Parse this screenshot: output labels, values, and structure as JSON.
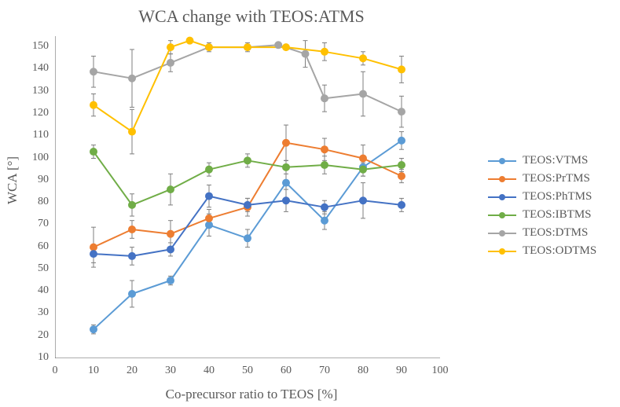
{
  "chart": {
    "type": "line-scatter",
    "title": "WCA change with TEOS:ATMS",
    "title_fontsize": 22,
    "title_color": "#595959",
    "xlabel": "Co-precursor ratio to TEOS [%]",
    "ylabel": "WCA [°]",
    "axis_label_fontsize": 17,
    "axis_color": "#595959",
    "tick_fontsize": 14,
    "tick_color": "#595959",
    "background_color": "#ffffff",
    "grid": false,
    "xlim": [
      0,
      100
    ],
    "ylim": [
      10,
      155
    ],
    "xticks": [
      0,
      10,
      20,
      30,
      40,
      50,
      60,
      70,
      80,
      90,
      100
    ],
    "yticks": [
      10,
      20,
      30,
      40,
      50,
      60,
      70,
      80,
      90,
      100,
      110,
      120,
      130,
      140,
      150
    ],
    "x_values": [
      10,
      20,
      30,
      40,
      50,
      60,
      70,
      80,
      90
    ],
    "marker_radius": 4.5,
    "line_width": 2,
    "errorbar_color": "#7f7f7f",
    "errorbar_width": 1,
    "errorbar_cap": 6,
    "series": [
      {
        "name": "TEOS:VTMS",
        "color": "#5b9bd5",
        "y": [
          23,
          39,
          45,
          70,
          64,
          89,
          72,
          96,
          108
        ],
        "err": [
          2,
          6,
          2,
          5,
          4,
          8,
          4,
          4,
          4
        ]
      },
      {
        "name": "TEOS:PrTMS",
        "color": "#ed7d31",
        "y": [
          60,
          68,
          66,
          73,
          78,
          107,
          104,
          100,
          92
        ],
        "err": [
          9,
          4,
          6,
          4,
          4,
          8,
          5,
          6,
          3
        ]
      },
      {
        "name": "TEOS:PhTMS",
        "color": "#4472c4",
        "y": [
          57,
          56,
          59,
          83,
          79,
          81,
          78,
          81,
          79
        ],
        "err": [
          4,
          4,
          3,
          5,
          3,
          5,
          3,
          8,
          3
        ]
      },
      {
        "name": "TEOS:IBTMS",
        "color": "#70ad47",
        "y": [
          103,
          79,
          86,
          95,
          99,
          96,
          97,
          95,
          97
        ],
        "err": [
          3,
          5,
          7,
          3,
          3,
          3,
          4,
          3,
          3
        ]
      },
      {
        "name": "TEOS:DTMS",
        "color": "#a5a5a5",
        "y": [
          139,
          136,
          143,
          150,
          150,
          151,
          147,
          127,
          129,
          121
        ],
        "x_override": [
          10,
          20,
          30,
          40,
          50,
          58,
          65,
          70,
          80,
          90
        ],
        "err": [
          7,
          13,
          4,
          2,
          2,
          1,
          6,
          6,
          10,
          7
        ]
      },
      {
        "name": "TEOS:ODTMS",
        "color": "#ffc000",
        "y": [
          124,
          112,
          150,
          153,
          150,
          150,
          150,
          148,
          145,
          140
        ],
        "x_override": [
          10,
          20,
          30,
          35,
          40,
          50,
          60,
          70,
          80,
          90
        ],
        "err": [
          5,
          10,
          3,
          0,
          0,
          0,
          0,
          4,
          3,
          6
        ]
      }
    ],
    "legend": {
      "position": "right",
      "fontsize": 15,
      "text_color": "#595959"
    }
  }
}
